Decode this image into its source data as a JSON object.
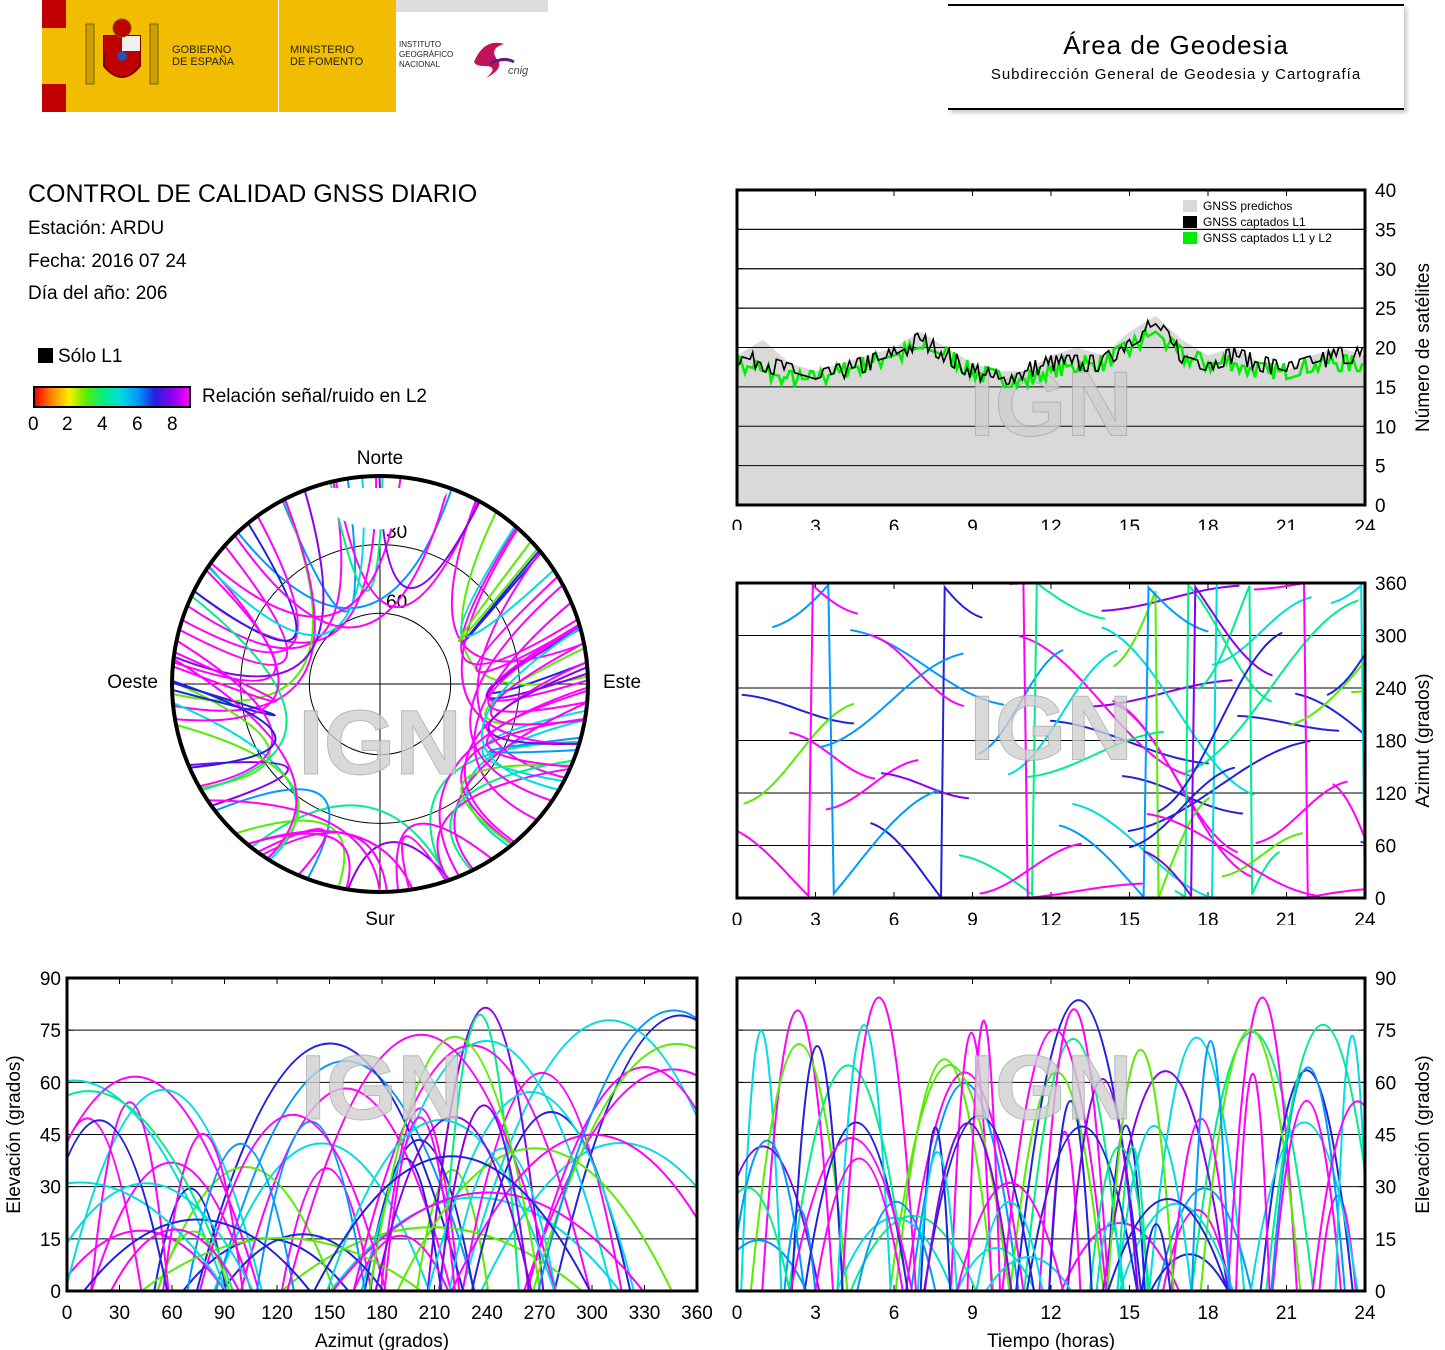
{
  "header": {
    "gov_line1": "GOBIERNO",
    "gov_line2": "DE ESPAÑA",
    "ministry_line1": "MINISTERIO",
    "ministry_line2": "DE FOMENTO",
    "ign_line1": "INSTITUTO",
    "ign_line2": "GEOGRÁFICO",
    "ign_line3": "NACIONAL",
    "cnig": "cnig",
    "area_title": "Área de Geodesia",
    "area_subtitle": "Subdirección General de Geodesia y Cartografía"
  },
  "info": {
    "title": "CONTROL DE CALIDAD GNSS DIARIO",
    "station": "Estación: ARDU",
    "date": "Fecha: 2016 07 24",
    "doy": "Día del año: 206"
  },
  "legend": {
    "l1_only": "Sólo L1",
    "snr_label": "Relación señal/ruido en L2",
    "snr_ticks": [
      "0",
      "2",
      "4",
      "6",
      "8"
    ]
  },
  "watermark": "IGN",
  "colors": {
    "predicted": "#d9d9d9",
    "captured_l1": "#000000",
    "captured_l1l2": "#00ee00",
    "snr_scale": [
      "#000000",
      "#ff0000",
      "#ff8800",
      "#ffee00",
      "#55ee00",
      "#00ee88",
      "#00dddd",
      "#0099ff",
      "#2222dd",
      "#8800ee",
      "#ff00ff"
    ]
  },
  "chart_data": [
    {
      "type": "area",
      "id": "satellites",
      "ylabel": "Número de satélites",
      "xlim": [
        0,
        24
      ],
      "ylim": [
        0,
        40
      ],
      "xticks": [
        0,
        3,
        6,
        9,
        12,
        15,
        18,
        21,
        24
      ],
      "yticks": [
        0,
        5,
        10,
        15,
        20,
        25,
        30,
        35,
        40
      ],
      "legend_position": "top-right",
      "grid": true,
      "series": [
        {
          "name": "GNSS predichos",
          "x": [
            0,
            1,
            2,
            3,
            4,
            5,
            6,
            7,
            8,
            9,
            10,
            11,
            12,
            13,
            14,
            15,
            16,
            17,
            18,
            19,
            20,
            21,
            22,
            23,
            24
          ],
          "values": [
            19,
            21,
            18,
            17,
            18,
            19,
            20,
            22,
            20,
            18,
            17,
            17,
            19,
            20,
            19,
            22,
            24,
            21,
            19,
            20,
            18,
            17,
            19,
            20,
            19
          ]
        },
        {
          "name": "GNSS captados L1",
          "x": [
            0,
            1,
            2,
            3,
            4,
            5,
            6,
            7,
            8,
            9,
            10,
            11,
            12,
            13,
            14,
            15,
            16,
            17,
            18,
            19,
            20,
            21,
            22,
            23,
            24
          ],
          "values": [
            19,
            18,
            17,
            16,
            17,
            18,
            19,
            21,
            19,
            17,
            16,
            17,
            18,
            18,
            18,
            21,
            23,
            19,
            18,
            19,
            18,
            17,
            18,
            19,
            19
          ]
        },
        {
          "name": "GNSS captados L1 y L2",
          "x": [
            0,
            1,
            2,
            3,
            4,
            5,
            6,
            7,
            8,
            9,
            10,
            11,
            12,
            13,
            14,
            15,
            16,
            17,
            18,
            19,
            20,
            21,
            22,
            23,
            24
          ],
          "values": [
            18,
            17,
            16,
            16,
            17,
            18,
            19,
            20,
            19,
            17,
            16,
            16,
            17,
            18,
            18,
            20,
            22,
            19,
            18,
            18,
            17,
            17,
            18,
            18,
            18
          ]
        }
      ]
    },
    {
      "type": "scatter",
      "id": "skyplot",
      "labels": {
        "north": "Norte",
        "south": "Sur",
        "west": "Oeste",
        "east": "Este"
      },
      "elevation_rings": [
        "30",
        "60"
      ]
    },
    {
      "type": "scatter",
      "id": "azimuth_time",
      "ylabel": "Azimut (grados)",
      "xlim": [
        0,
        24
      ],
      "ylim": [
        0,
        360
      ],
      "xticks": [
        0,
        3,
        6,
        9,
        12,
        15,
        18,
        21,
        24
      ],
      "yticks": [
        0,
        60,
        120,
        180,
        240,
        300,
        360
      ],
      "grid": true
    },
    {
      "type": "scatter",
      "id": "elevation_azimuth",
      "xlabel": "Azimut (grados)",
      "ylabel": "Elevación (grados)",
      "xlim": [
        0,
        360
      ],
      "ylim": [
        0,
        90
      ],
      "xticks": [
        0,
        30,
        60,
        90,
        120,
        150,
        180,
        210,
        240,
        270,
        300,
        330,
        360
      ],
      "yticks": [
        0,
        15,
        30,
        45,
        60,
        75,
        90
      ],
      "grid": true
    },
    {
      "type": "scatter",
      "id": "elevation_time",
      "xlabel": "Tiempo (horas)",
      "ylabel": "Elevación (grados)",
      "xlim": [
        0,
        24
      ],
      "ylim": [
        0,
        90
      ],
      "xticks": [
        0,
        3,
        6,
        9,
        12,
        15,
        18,
        21,
        24
      ],
      "yticks": [
        0,
        15,
        30,
        45,
        60,
        75,
        90
      ],
      "grid": true
    }
  ]
}
